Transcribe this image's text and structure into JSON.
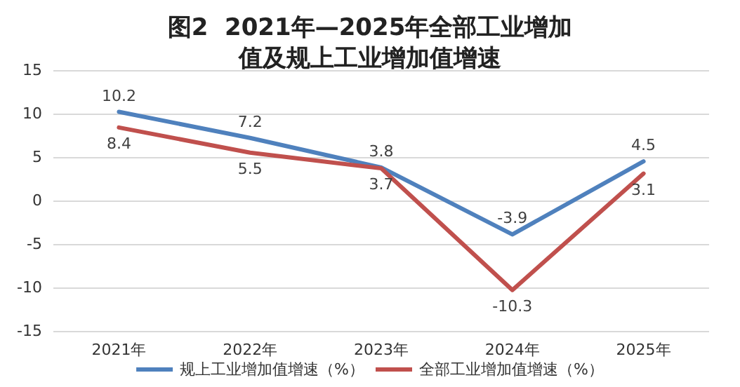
{
  "chart_data": {
    "type": "line",
    "title": "图2  2021年—2025年全部工业增加值及规上工业增加值增速",
    "categories": [
      "2021年",
      "2022年",
      "2023年",
      "2024年",
      "2025年"
    ],
    "series": [
      {
        "name": "规上工业增加值增速（%）",
        "color": "#4f81bd",
        "values": [
          10.2,
          7.2,
          3.8,
          -3.9,
          4.5
        ]
      },
      {
        "name": "全部工业增加值增速（%）",
        "color": "#c0504d",
        "values": [
          8.4,
          5.5,
          3.7,
          -10.3,
          3.1
        ]
      }
    ],
    "ylim": [
      -15,
      15
    ],
    "yticks": [
      -15,
      -10,
      -5,
      0,
      5,
      10,
      15
    ],
    "grid": "y",
    "legend": "bottom",
    "marker": "none",
    "line_style": "solid",
    "data_labels": true
  }
}
